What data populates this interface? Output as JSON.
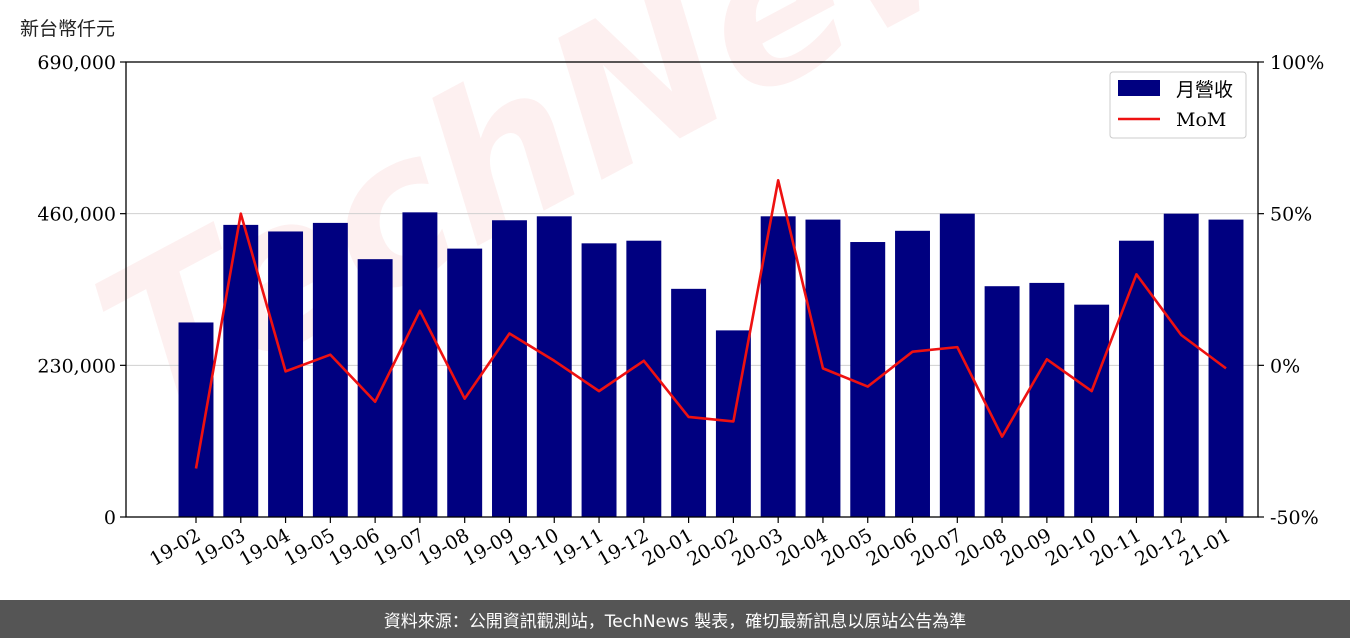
{
  "unit_label": "新台幣仟元",
  "footer_text": "資料來源：公開資訊觀測站，TechNews 製表，確切最新訊息以原站公告為準",
  "watermark_text": "TechNews",
  "colors": {
    "bar": "#000080",
    "line": "#ee1111",
    "footer_bg": "#555555"
  },
  "chart_data": {
    "type": "bar",
    "categories": [
      "19-02",
      "19-03",
      "19-04",
      "19-05",
      "19-06",
      "19-07",
      "19-08",
      "19-09",
      "19-10",
      "19-11",
      "19-12",
      "20-01",
      "20-02",
      "20-03",
      "20-04",
      "20-05",
      "20-06",
      "20-07",
      "20-08",
      "20-09",
      "20-10",
      "20-11",
      "20-12",
      "21-01"
    ],
    "series": [
      {
        "name": "月營收",
        "type": "bar",
        "axis": "left",
        "values": [
          295000,
          443000,
          433000,
          446000,
          391000,
          462000,
          407000,
          450000,
          456000,
          415000,
          419000,
          346000,
          283000,
          456000,
          451000,
          417000,
          434000,
          460000,
          350000,
          355000,
          322000,
          419000,
          460000,
          451000
        ]
      },
      {
        "name": "MoM",
        "type": "line",
        "axis": "right",
        "values": [
          -34,
          50,
          -2,
          3.5,
          -12,
          18,
          -11,
          10.5,
          1.5,
          -8.5,
          1.5,
          -17,
          -18.5,
          61,
          -1,
          -7,
          4.5,
          6,
          -23.5,
          2,
          -8.5,
          30,
          10,
          -1
        ]
      }
    ],
    "y_left": {
      "min": 0,
      "max": 690000,
      "ticks": [
        0,
        230000,
        460000,
        690000
      ],
      "tick_labels": [
        "0",
        "230,000",
        "460,000",
        "690,000"
      ]
    },
    "y_right": {
      "min": -50,
      "max": 100,
      "ticks": [
        -50,
        0,
        50,
        100
      ],
      "tick_labels": [
        "-50%",
        "0%",
        "50%",
        "100%"
      ]
    },
    "grid": "horizontal",
    "legend": "top-right"
  }
}
